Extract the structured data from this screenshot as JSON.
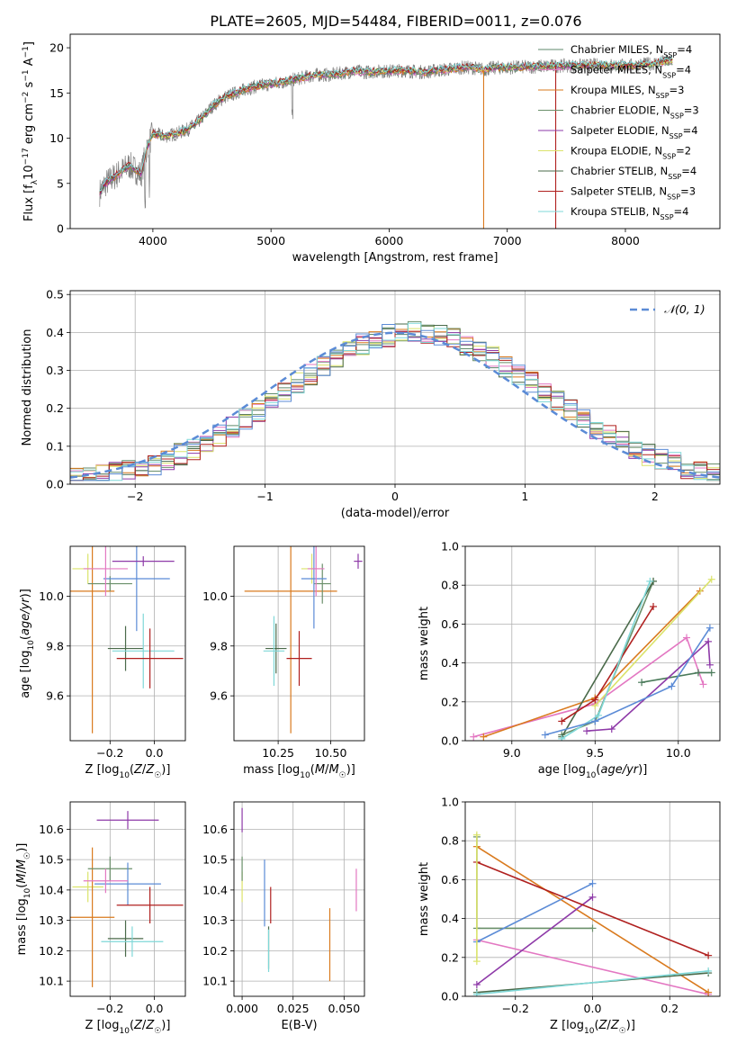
{
  "figure_title": "PLATE=2605, MJD=54484, FIBERID=0011, z=0.076",
  "chart_data": [
    {
      "type": "line",
      "title": "PLATE=2605, MJD=54484, FIBERID=0011, z=0.076",
      "xlabel": "wavelength [Angstrom, rest frame]",
      "ylabel": "Flux [f_λ10^-17 erg cm^-2 s^-1 A^-1]",
      "xlim": [
        3300,
        8800
      ],
      "ylim": [
        0,
        21.5
      ],
      "xticks": [
        4000,
        5000,
        6000,
        7000,
        8000
      ],
      "yticks": [
        0,
        5,
        10,
        15,
        20
      ],
      "legend_position": "right",
      "series": [
        {
          "name": "Chabrier MILES, N_SSP=4",
          "color": "#5f8a6b"
        },
        {
          "name": "Salpeter MILES, N_SSP=4",
          "color": "#e377c2"
        },
        {
          "name": "Kroupa MILES, N_SSP=3",
          "color": "#d97a1e"
        },
        {
          "name": "Chabrier ELODIE, N_SSP=3",
          "color": "#6a8f6a"
        },
        {
          "name": "Salpeter ELODIE, N_SSP=4",
          "color": "#8e3aa8"
        },
        {
          "name": "Kroupa ELODIE, N_SSP=2",
          "color": "#dbe36a"
        },
        {
          "name": "Chabrier STELIB, N_SSP=4",
          "color": "#4a6a4a"
        },
        {
          "name": "Salpeter STELIB, N_SSP=3",
          "color": "#b0201f"
        },
        {
          "name": "Kroupa STELIB, N_SSP=4",
          "color": "#7fd8d8"
        }
      ],
      "data_color": "#808080",
      "continuum_points": [
        [
          3550,
          4
        ],
        [
          3600,
          5
        ],
        [
          3700,
          6
        ],
        [
          3800,
          7
        ],
        [
          3900,
          6
        ],
        [
          3950,
          9
        ],
        [
          4000,
          10.5
        ],
        [
          4100,
          10.2
        ],
        [
          4200,
          10.5
        ],
        [
          4300,
          11
        ],
        [
          4400,
          12
        ],
        [
          4500,
          13.5
        ],
        [
          4600,
          14.5
        ],
        [
          4700,
          15
        ],
        [
          4800,
          15.5
        ],
        [
          4900,
          15.8
        ],
        [
          5000,
          16
        ],
        [
          5100,
          16.2
        ],
        [
          5200,
          16.5
        ],
        [
          5300,
          16.8
        ],
        [
          5400,
          17
        ],
        [
          5500,
          17
        ],
        [
          5600,
          17.2
        ],
        [
          5700,
          17.4
        ],
        [
          5800,
          17.3
        ],
        [
          5900,
          17.4
        ],
        [
          6000,
          17.4
        ],
        [
          6100,
          17.5
        ],
        [
          6200,
          17.4
        ],
        [
          6300,
          17.3
        ],
        [
          6400,
          17.5
        ],
        [
          6500,
          17.6
        ],
        [
          6600,
          17.8
        ],
        [
          6700,
          17.8
        ],
        [
          6800,
          17.6
        ],
        [
          6900,
          17.8
        ],
        [
          7000,
          17.8
        ],
        [
          7200,
          17.9
        ],
        [
          7400,
          18
        ],
        [
          7600,
          18
        ],
        [
          7800,
          18.1
        ],
        [
          8000,
          18
        ],
        [
          8200,
          18.2
        ],
        [
          8400,
          18.6
        ]
      ]
    },
    {
      "type": "histogram",
      "xlabel": "(data-model)/error",
      "ylabel": "Normed distribution",
      "xlim": [
        -2.5,
        2.5
      ],
      "ylim": [
        0,
        0.51
      ],
      "xticks": [
        -2,
        -1,
        0,
        1,
        2
      ],
      "yticks": [
        0.0,
        0.1,
        0.2,
        0.3,
        0.4,
        0.5
      ],
      "grid": true,
      "legend": "𝒩(0, 1)",
      "legend_position": "top-right",
      "gaussian_color": "#5b8bd6",
      "bin_width": 0.1,
      "bin_start": -2.5
    },
    {
      "type": "scatter",
      "xlabel": "Z [log10(Z/Z☉)]",
      "ylabel": "age  [log10(age/yr)]",
      "xlim": [
        -0.38,
        0.14
      ],
      "ylim": [
        9.42,
        10.2
      ],
      "xticks": [
        -0.2,
        0.0
      ],
      "yticks": [
        9.6,
        9.8,
        10.0
      ],
      "points": [
        {
          "x": -0.3,
          "y": 10.11,
          "xerr": 0.07,
          "yerr": 0.06,
          "color": "#dbe36a"
        },
        {
          "x": -0.28,
          "y": 10.02,
          "xerr": 0.1,
          "yerr": 0.57,
          "color": "#d97a1e"
        },
        {
          "x": -0.2,
          "y": 10.05,
          "xerr": 0.1,
          "yerr": 0.03,
          "color": "#6a8f6a"
        },
        {
          "x": -0.08,
          "y": 10.07,
          "xerr": 0.15,
          "yerr": 0.21,
          "color": "#5b8bd6"
        },
        {
          "x": -0.22,
          "y": 10.11,
          "xerr": 0.1,
          "yerr": 0.11,
          "color": "#e377c2"
        },
        {
          "x": -0.05,
          "y": 10.14,
          "xerr": 0.14,
          "yerr": 0.02,
          "color": "#8e3aa8"
        },
        {
          "x": -0.13,
          "y": 9.79,
          "xerr": 0.08,
          "yerr": 0.09,
          "color": "#4a6a4a"
        },
        {
          "x": -0.05,
          "y": 9.78,
          "xerr": 0.14,
          "yerr": 0.15,
          "color": "#7fd8d8"
        },
        {
          "x": -0.02,
          "y": 9.75,
          "xerr": 0.15,
          "yerr": 0.12,
          "color": "#b0201f"
        }
      ]
    },
    {
      "type": "scatter",
      "xlabel": "mass [log10(M/M☉)]",
      "xlim": [
        10.04,
        10.66
      ],
      "ylim": [
        9.42,
        10.2
      ],
      "xticks": [
        10.25,
        10.5
      ],
      "yticks": [
        9.6,
        9.8,
        10.0
      ],
      "points": [
        {
          "x": 10.41,
          "y": 10.11,
          "xerr": 0.05,
          "yerr": 0.06,
          "color": "#dbe36a"
        },
        {
          "x": 10.31,
          "y": 10.02,
          "xerr": 0.22,
          "yerr": 0.57,
          "color": "#d97a1e"
        },
        {
          "x": 10.46,
          "y": 10.05,
          "xerr": 0.04,
          "yerr": 0.08,
          "color": "#6a8f6a"
        },
        {
          "x": 10.42,
          "y": 10.07,
          "xerr": 0.06,
          "yerr": 0.2,
          "color": "#5b8bd6"
        },
        {
          "x": 10.43,
          "y": 10.11,
          "xerr": 0.04,
          "yerr": 0.11,
          "color": "#e377c2"
        },
        {
          "x": 10.63,
          "y": 10.14,
          "xerr": 0.02,
          "yerr": 0.03,
          "color": "#8e3aa8"
        },
        {
          "x": 10.24,
          "y": 9.79,
          "xerr": 0.05,
          "yerr": 0.1,
          "color": "#4a6a4a"
        },
        {
          "x": 10.23,
          "y": 9.78,
          "xerr": 0.05,
          "yerr": 0.14,
          "color": "#7fd8d8"
        },
        {
          "x": 10.35,
          "y": 9.75,
          "xerr": 0.06,
          "yerr": 0.11,
          "color": "#b0201f"
        }
      ]
    },
    {
      "type": "line",
      "xlabel": "age  [log10(age/yr)]",
      "ylabel": "mass weight",
      "xlim": [
        8.72,
        10.25
      ],
      "ylim": [
        0,
        1.0
      ],
      "xticks": [
        9.0,
        9.5,
        10.0
      ],
      "yticks": [
        0.0,
        0.2,
        0.4,
        0.6,
        0.8,
        1.0
      ],
      "grid": true,
      "series": [
        {
          "color": "#6a8f6a",
          "points": [
            [
              9.3,
              0.03
            ],
            [
              9.5,
              0.1
            ],
            [
              9.85,
              0.82
            ]
          ]
        },
        {
          "color": "#e377c2",
          "points": [
            [
              8.77,
              0.02
            ],
            [
              9.5,
              0.19
            ],
            [
              10.05,
              0.53
            ],
            [
              10.15,
              0.29
            ]
          ]
        },
        {
          "color": "#d97a1e",
          "points": [
            [
              8.83,
              0.02
            ],
            [
              9.5,
              0.22
            ],
            [
              10.13,
              0.77
            ]
          ]
        },
        {
          "color": "#4a7a5a",
          "points": [
            [
              9.78,
              0.3
            ],
            [
              10.12,
              0.35
            ],
            [
              10.2,
              0.35
            ]
          ]
        },
        {
          "color": "#8e3aa8",
          "points": [
            [
              9.45,
              0.05
            ],
            [
              9.6,
              0.06
            ],
            [
              10.18,
              0.51
            ],
            [
              10.19,
              0.39
            ]
          ]
        },
        {
          "color": "#dbe36a",
          "points": [
            [
              9.5,
              0.18
            ],
            [
              10.2,
              0.83
            ]
          ]
        },
        {
          "color": "#4a6a4a",
          "points": [
            [
              9.3,
              0.02
            ],
            [
              9.85,
              0.82
            ]
          ]
        },
        {
          "color": "#b0201f",
          "points": [
            [
              9.3,
              0.1
            ],
            [
              9.5,
              0.21
            ],
            [
              9.85,
              0.69
            ]
          ]
        },
        {
          "color": "#7fd8d8",
          "points": [
            [
              9.3,
              0.01
            ],
            [
              9.52,
              0.13
            ],
            [
              9.83,
              0.82
            ]
          ]
        },
        {
          "color": "#5b8bd6",
          "points": [
            [
              9.2,
              0.03
            ],
            [
              9.5,
              0.1
            ],
            [
              9.96,
              0.28
            ],
            [
              10.19,
              0.58
            ]
          ]
        }
      ]
    },
    {
      "type": "scatter",
      "xlabel": "Z [log10(Z/Z☉)]",
      "ylabel": "mass [log10(M/M☉)]",
      "xlim": [
        -0.38,
        0.14
      ],
      "ylim": [
        10.05,
        10.69
      ],
      "xticks": [
        -0.2,
        0.0
      ],
      "yticks": [
        10.1,
        10.2,
        10.3,
        10.4,
        10.5,
        10.6
      ],
      "points": [
        {
          "x": -0.3,
          "y": 10.41,
          "xerr": 0.07,
          "yerr": 0.05,
          "color": "#dbe36a"
        },
        {
          "x": -0.28,
          "y": 10.31,
          "xerr": 0.1,
          "yerr": 0.23,
          "color": "#d97a1e"
        },
        {
          "x": -0.2,
          "y": 10.47,
          "xerr": 0.1,
          "yerr": 0.04,
          "color": "#6a8f6a"
        },
        {
          "x": -0.12,
          "y": 10.42,
          "xerr": 0.15,
          "yerr": 0.07,
          "color": "#5b8bd6"
        },
        {
          "x": -0.22,
          "y": 10.43,
          "xerr": 0.1,
          "yerr": 0.04,
          "color": "#e377c2"
        },
        {
          "x": -0.12,
          "y": 10.63,
          "xerr": 0.14,
          "yerr": 0.03,
          "color": "#8e3aa8"
        },
        {
          "x": -0.13,
          "y": 10.24,
          "xerr": 0.08,
          "yerr": 0.06,
          "color": "#4a6a4a"
        },
        {
          "x": -0.1,
          "y": 10.23,
          "xerr": 0.14,
          "yerr": 0.05,
          "color": "#7fd8d8"
        },
        {
          "x": -0.02,
          "y": 10.35,
          "xerr": 0.15,
          "yerr": 0.06,
          "color": "#b0201f"
        }
      ]
    },
    {
      "type": "scatter",
      "xlabel": "E(B-V)",
      "xlim": [
        -0.004,
        0.06
      ],
      "ylim": [
        10.05,
        10.69
      ],
      "xticks": [
        0.0,
        0.025,
        0.05
      ],
      "yticks": [
        10.1,
        10.2,
        10.3,
        10.4,
        10.5,
        10.6
      ],
      "points": [
        {
          "x": 0.0,
          "y": 10.41,
          "xerr": 0,
          "yerr": 0.05,
          "color": "#dbe36a"
        },
        {
          "x": 0.043,
          "y": 10.22,
          "xerr": 0,
          "yerr": 0.12,
          "color": "#d97a1e"
        },
        {
          "x": 0.0,
          "y": 10.47,
          "xerr": 0,
          "yerr": 0.04,
          "color": "#6a8f6a"
        },
        {
          "x": 0.011,
          "y": 10.39,
          "xerr": 0,
          "yerr": 0.11,
          "color": "#5b8bd6"
        },
        {
          "x": 0.056,
          "y": 10.4,
          "xerr": 0,
          "yerr": 0.07,
          "color": "#e377c2"
        },
        {
          "x": 0.0,
          "y": 10.63,
          "xerr": 0,
          "yerr": 0.04,
          "color": "#8e3aa8"
        },
        {
          "x": 0.013,
          "y": 10.21,
          "xerr": 0,
          "yerr": 0.07,
          "color": "#4a6a4a"
        },
        {
          "x": 0.013,
          "y": 10.2,
          "xerr": 0,
          "yerr": 0.07,
          "color": "#7fd8d8"
        },
        {
          "x": 0.014,
          "y": 10.35,
          "xerr": 0,
          "yerr": 0.06,
          "color": "#b0201f"
        }
      ]
    },
    {
      "type": "line",
      "xlabel": "Z [log10(Z/Z☉)]",
      "ylabel": "mass weight",
      "xlim": [
        -0.33,
        0.33
      ],
      "ylim": [
        0,
        1.0
      ],
      "xticks": [
        -0.2,
        0.0,
        0.2
      ],
      "yticks": [
        0.0,
        0.2,
        0.4,
        0.6,
        0.8,
        1.0
      ],
      "grid": true,
      "series": [
        {
          "color": "#6a8f6a",
          "points": [
            [
              -0.3,
              0.82
            ],
            [
              -0.3,
              0.35
            ],
            [
              0.0,
              0.35
            ]
          ]
        },
        {
          "color": "#e377c2",
          "points": [
            [
              -0.3,
              0.29
            ],
            [
              0.3,
              0.01
            ]
          ]
        },
        {
          "color": "#d97a1e",
          "points": [
            [
              -0.3,
              0.77
            ],
            [
              0.3,
              0.02
            ]
          ]
        },
        {
          "color": "#8e3aa8",
          "points": [
            [
              -0.3,
              0.06
            ],
            [
              0.0,
              0.51
            ]
          ]
        },
        {
          "color": "#5b8bd6",
          "points": [
            [
              -0.3,
              0.28
            ],
            [
              0.0,
              0.58
            ]
          ]
        },
        {
          "color": "#b0201f",
          "points": [
            [
              -0.3,
              0.69
            ],
            [
              0.3,
              0.21
            ]
          ]
        },
        {
          "color": "#4a6a4a",
          "points": [
            [
              -0.3,
              0.02
            ],
            [
              0.3,
              0.12
            ]
          ]
        },
        {
          "color": "#7fd8d8",
          "points": [
            [
              -0.3,
              0.01
            ],
            [
              0.3,
              0.13
            ]
          ]
        },
        {
          "color": "#dbe36a",
          "points": [
            [
              -0.3,
              0.83
            ],
            [
              -0.3,
              0.18
            ]
          ]
        }
      ]
    }
  ]
}
